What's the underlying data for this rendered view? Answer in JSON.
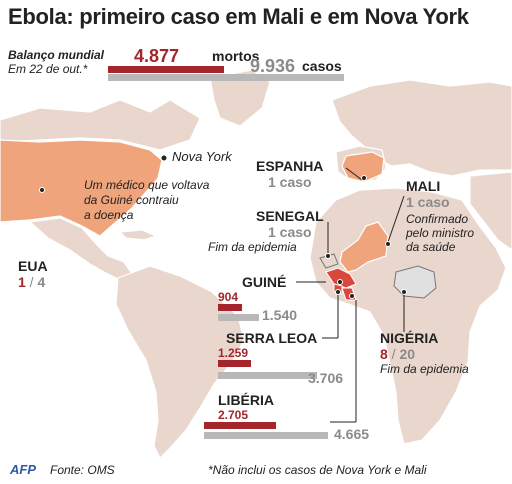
{
  "title": "Ebola: primeiro caso em Mali e em Nova York",
  "header": {
    "label": "Balanço mundial",
    "date": "Em 22 de out.*",
    "deaths_value": "4.877",
    "deaths_label": "mortos",
    "cases_value": "9.936",
    "cases_label": "casos",
    "deaths_fraction": 0.4908,
    "cases_fraction": 1.0
  },
  "colors": {
    "deaths": "#a4262c",
    "cases": "#b8b8b8",
    "land": "#e9d6cc",
    "affected_highlight": "#d9483d",
    "case_highlight": "#f0a47c",
    "nigeria": "#e0e0e0",
    "ocean": "#ffffff"
  },
  "annotations": {
    "new_york": {
      "name": "Nova York",
      "note": [
        "Um médico que voltava",
        "da Guiné contraiu",
        "a doença"
      ]
    },
    "usa": {
      "name": "EUA",
      "deaths": "1",
      "separator": " / ",
      "cases": "4"
    },
    "spain": {
      "name": "ESPANHA",
      "cases": "1 caso"
    },
    "senegal": {
      "name": "SENEGAL",
      "cases": "1 caso",
      "note": "Fim da epidemia"
    },
    "mali": {
      "name": "MALI",
      "cases": "1 caso",
      "note": [
        "Confirmado",
        "pelo ministro",
        "da saúde"
      ]
    },
    "nigeria": {
      "name": "NIGÉRIA",
      "deaths": "8",
      "separator": " / ",
      "cases": "20",
      "note": "Fim da epidemia"
    }
  },
  "countries_bars": [
    {
      "name": "GUINÉ",
      "deaths": "904",
      "cases": "1.540",
      "deaths_value": 904,
      "cases_value": 1540
    },
    {
      "name": "SERRA LEOA",
      "deaths": "1.259",
      "cases": "3.706",
      "deaths_value": 1259,
      "cases_value": 3706
    },
    {
      "name": "LIBÉRIA",
      "deaths": "2.705",
      "cases": "4.665",
      "deaths_value": 2705,
      "cases_value": 4665
    }
  ],
  "footer": {
    "logo": "AFP",
    "source": "Fonte: OMS",
    "footnote": "*Não inclui os casos de Nova York e Mali"
  }
}
